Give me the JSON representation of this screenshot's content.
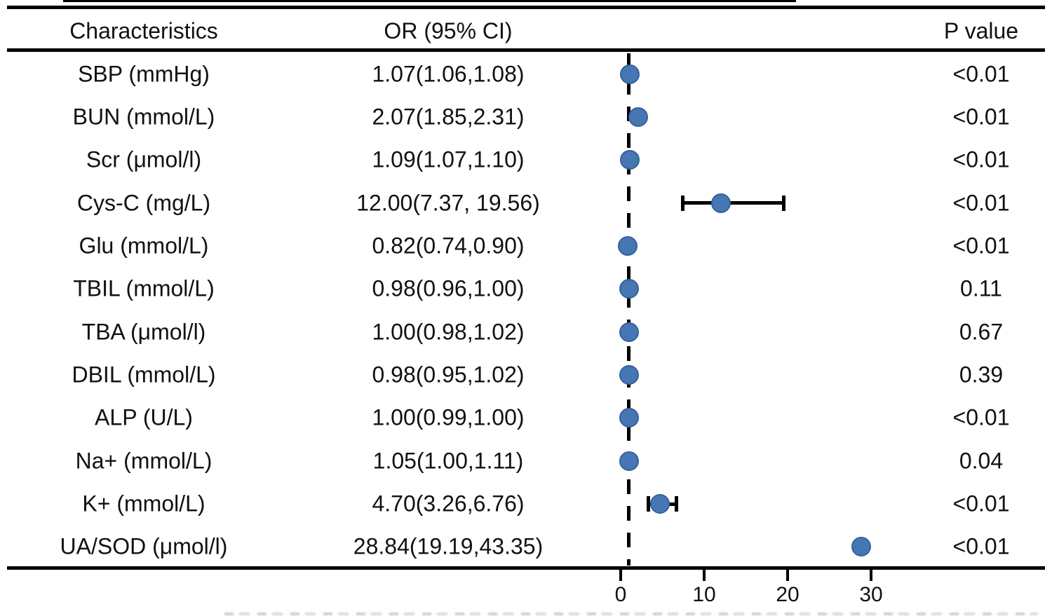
{
  "table": {
    "headers": {
      "characteristics": "Characteristics",
      "or_ci": "OR (95% CI)",
      "p_value": "P value"
    }
  },
  "chart_data": {
    "type": "scatter",
    "subtype": "forest-plot",
    "title": "",
    "xlabel": "",
    "ylabel": "",
    "axis": {
      "ticks": [
        0,
        10,
        20,
        30
      ],
      "tick_labels": [
        "0",
        "10",
        "20",
        "30"
      ],
      "reference_line_or": 1,
      "grid": false
    },
    "rows": [
      {
        "label": "SBP (mmHg)",
        "or_text": "1.07(1.06,1.08)",
        "or": 1.07,
        "ci_low": 1.06,
        "ci_high": 1.08,
        "p": "<0.01",
        "ci_bar_visible": false
      },
      {
        "label": "BUN (mmol/L)",
        "or_text": "2.07(1.85,2.31)",
        "or": 2.07,
        "ci_low": 1.85,
        "ci_high": 2.31,
        "p": "<0.01",
        "ci_bar_visible": false
      },
      {
        "label": "Scr (μmol/l)",
        "or_text": "1.09(1.07,1.10)",
        "or": 1.09,
        "ci_low": 1.07,
        "ci_high": 1.1,
        "p": "<0.01",
        "ci_bar_visible": false
      },
      {
        "label": "Cys-C (mg/L)",
        "or_text": "12.00(7.37, 19.56)",
        "or": 12.0,
        "ci_low": 7.37,
        "ci_high": 19.56,
        "p": "<0.01",
        "ci_bar_visible": true
      },
      {
        "label": "Glu (mmol/L)",
        "or_text": "0.82(0.74,0.90)",
        "or": 0.82,
        "ci_low": 0.74,
        "ci_high": 0.9,
        "p": "<0.01",
        "ci_bar_visible": false
      },
      {
        "label": "TBIL (mmol/L)",
        "or_text": "0.98(0.96,1.00)",
        "or": 0.98,
        "ci_low": 0.96,
        "ci_high": 1.0,
        "p": "0.11",
        "ci_bar_visible": false
      },
      {
        "label": "TBA (μmol/l)",
        "or_text": "1.00(0.98,1.02)",
        "or": 1.0,
        "ci_low": 0.98,
        "ci_high": 1.02,
        "p": "0.67",
        "ci_bar_visible": false
      },
      {
        "label": "DBIL (mmol/L)",
        "or_text": "0.98(0.95,1.02)",
        "or": 0.98,
        "ci_low": 0.95,
        "ci_high": 1.02,
        "p": "0.39",
        "ci_bar_visible": false
      },
      {
        "label": "ALP (U/L)",
        "or_text": "1.00(0.99,1.00)",
        "or": 1.0,
        "ci_low": 0.99,
        "ci_high": 1.0,
        "p": "<0.01",
        "ci_bar_visible": false
      },
      {
        "label": "Na+ (mmol/L)",
        "or_text": "1.05(1.00,1.11)",
        "or": 1.05,
        "ci_low": 1.0,
        "ci_high": 1.11,
        "p": "0.04",
        "ci_bar_visible": false
      },
      {
        "label": "K+ (mmol/L)",
        "or_text": "4.70(3.26,6.76)",
        "or": 4.7,
        "ci_low": 3.26,
        "ci_high": 6.76,
        "p": "<0.01",
        "ci_bar_visible": true
      },
      {
        "label": "UA/SOD (μmol/l)",
        "or_text": "28.84(19.19,43.35)",
        "or": 28.84,
        "ci_low": 19.19,
        "ci_high": 43.35,
        "p": "<0.01",
        "ci_bar_visible": false
      }
    ]
  },
  "colors": {
    "dot_fill": "#4677b4",
    "dot_border": "#35619c",
    "line": "#000000",
    "text": "#111111"
  }
}
